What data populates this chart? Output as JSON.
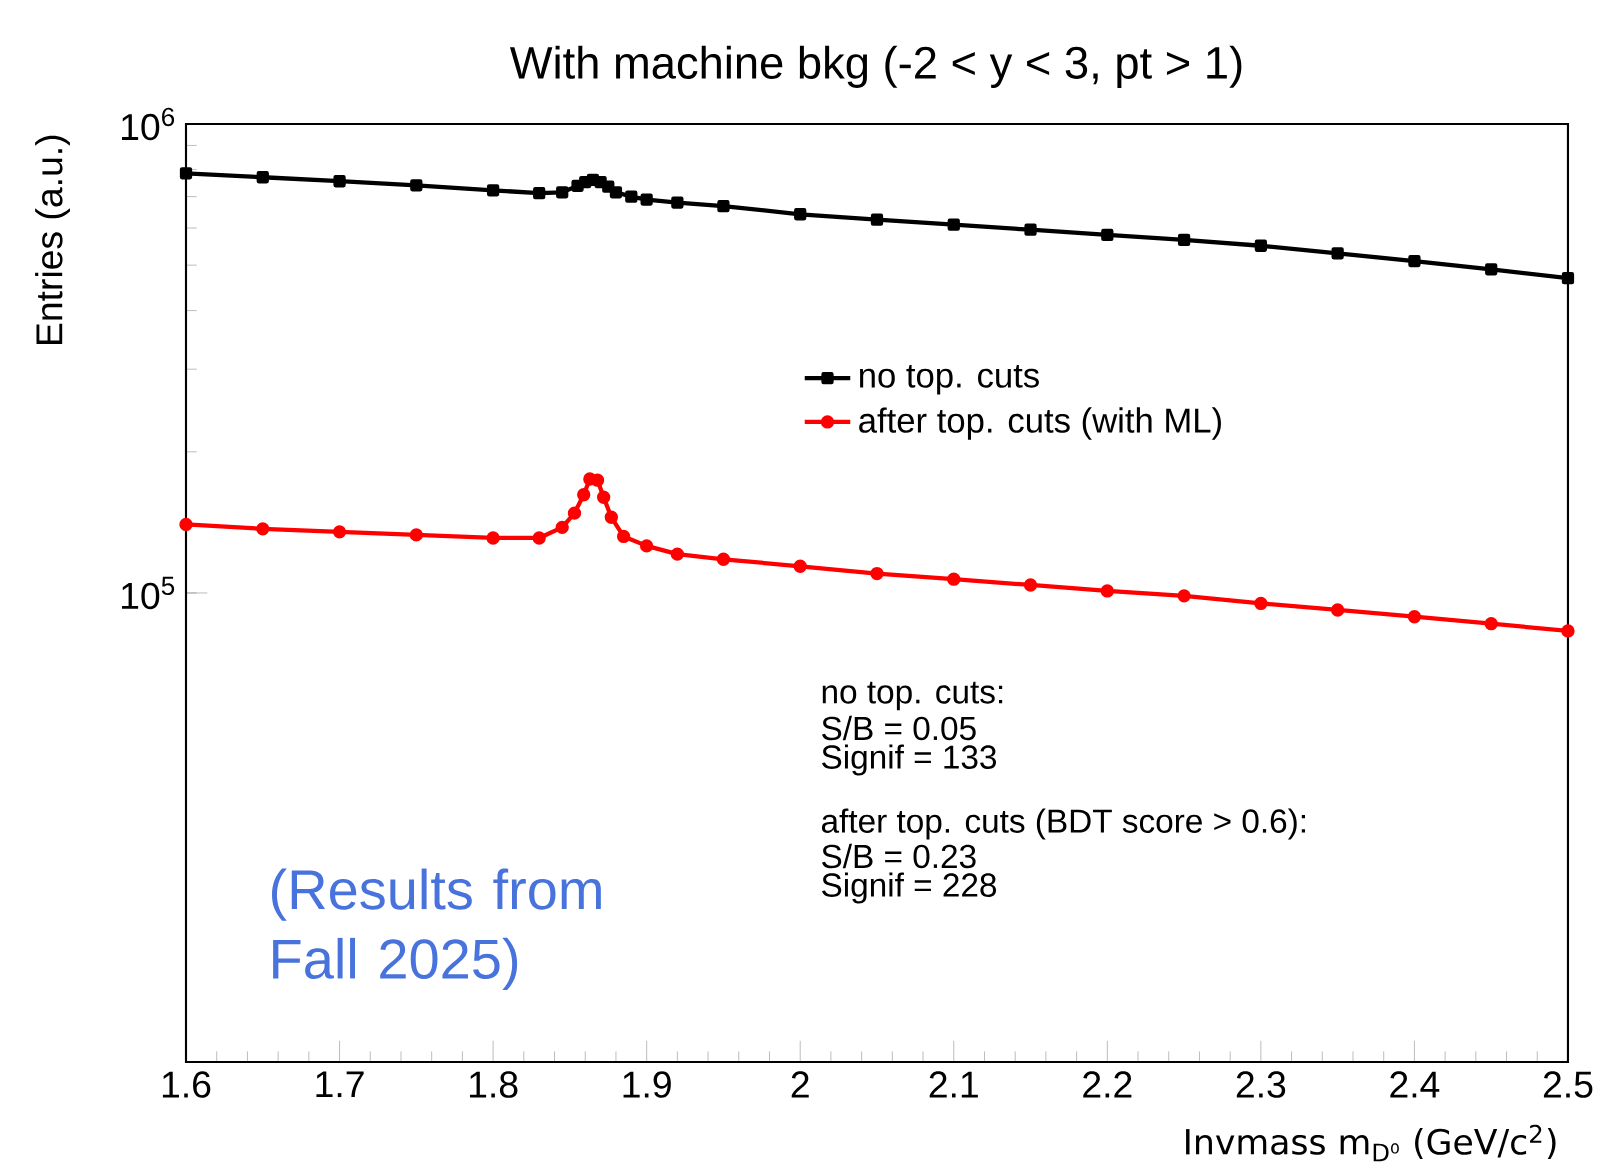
{
  "chart_data": {
    "type": "line",
    "title": "With machine bkg (-2 < y < 3, pt > 1)",
    "xlabel": "Invmass m$_{D⁰}$ (GeV/c$^{2}$)",
    "ylabel": "Entries (a.u.)",
    "log": "y",
    "xlim": [
      1.6,
      2.5
    ],
    "ylim": [
      10000,
      1000000
    ],
    "xticks": [
      1.6,
      1.7,
      1.8,
      1.9,
      2,
      2.1,
      2.2,
      2.3,
      2.4,
      2.5
    ],
    "yticks": [
      {
        "value": 100000,
        "label": "10$^{5}$"
      },
      {
        "value": 1000000,
        "label": "10$^{6}$"
      }
    ],
    "legend": "top",
    "grid": false,
    "series": [
      {
        "name": "no top. cuts",
        "color": "#000000",
        "marker": "square",
        "x": [
          1.6,
          1.65,
          1.7,
          1.75,
          1.8,
          1.83,
          1.845,
          1.855,
          1.86,
          1.865,
          1.87,
          1.875,
          1.88,
          1.89,
          1.9,
          1.92,
          1.95,
          2.0,
          2.05,
          2.1,
          2.15,
          2.2,
          2.25,
          2.3,
          2.35,
          2.4,
          2.45,
          2.5
        ],
        "values": [
          785000,
          770000,
          755000,
          740000,
          722000,
          712000,
          715000,
          738000,
          752000,
          760000,
          752000,
          735000,
          715000,
          700000,
          690000,
          680000,
          668000,
          642000,
          625000,
          610000,
          595000,
          580000,
          566000,
          550000,
          530000,
          510000,
          490000,
          469000
        ]
      },
      {
        "name": "after top. cuts (with ML)",
        "color": "#ff0000",
        "marker": "circle",
        "x": [
          1.6,
          1.65,
          1.7,
          1.75,
          1.8,
          1.83,
          1.845,
          1.853,
          1.859,
          1.863,
          1.868,
          1.872,
          1.877,
          1.885,
          1.9,
          1.92,
          1.95,
          2.0,
          2.05,
          2.1,
          2.15,
          2.2,
          2.25,
          2.3,
          2.35,
          2.4,
          2.45,
          2.5
        ],
        "values": [
          140000,
          137000,
          135000,
          133000,
          131000,
          131000,
          138000,
          148000,
          162000,
          175000,
          174000,
          160000,
          145000,
          132000,
          126000,
          121000,
          118000,
          114000,
          110000,
          107000,
          104000,
          101000,
          98600,
          95000,
          92000,
          89000,
          86000,
          83000
        ]
      }
    ],
    "annotations": [
      "no top. cuts:",
      "S/B = 0.05",
      "Signif = 133",
      "after top. cuts (BDT score > 0.6):",
      "S/B = 0.23",
      "Signif = 228",
      "(Results from Fall 2025)"
    ]
  }
}
